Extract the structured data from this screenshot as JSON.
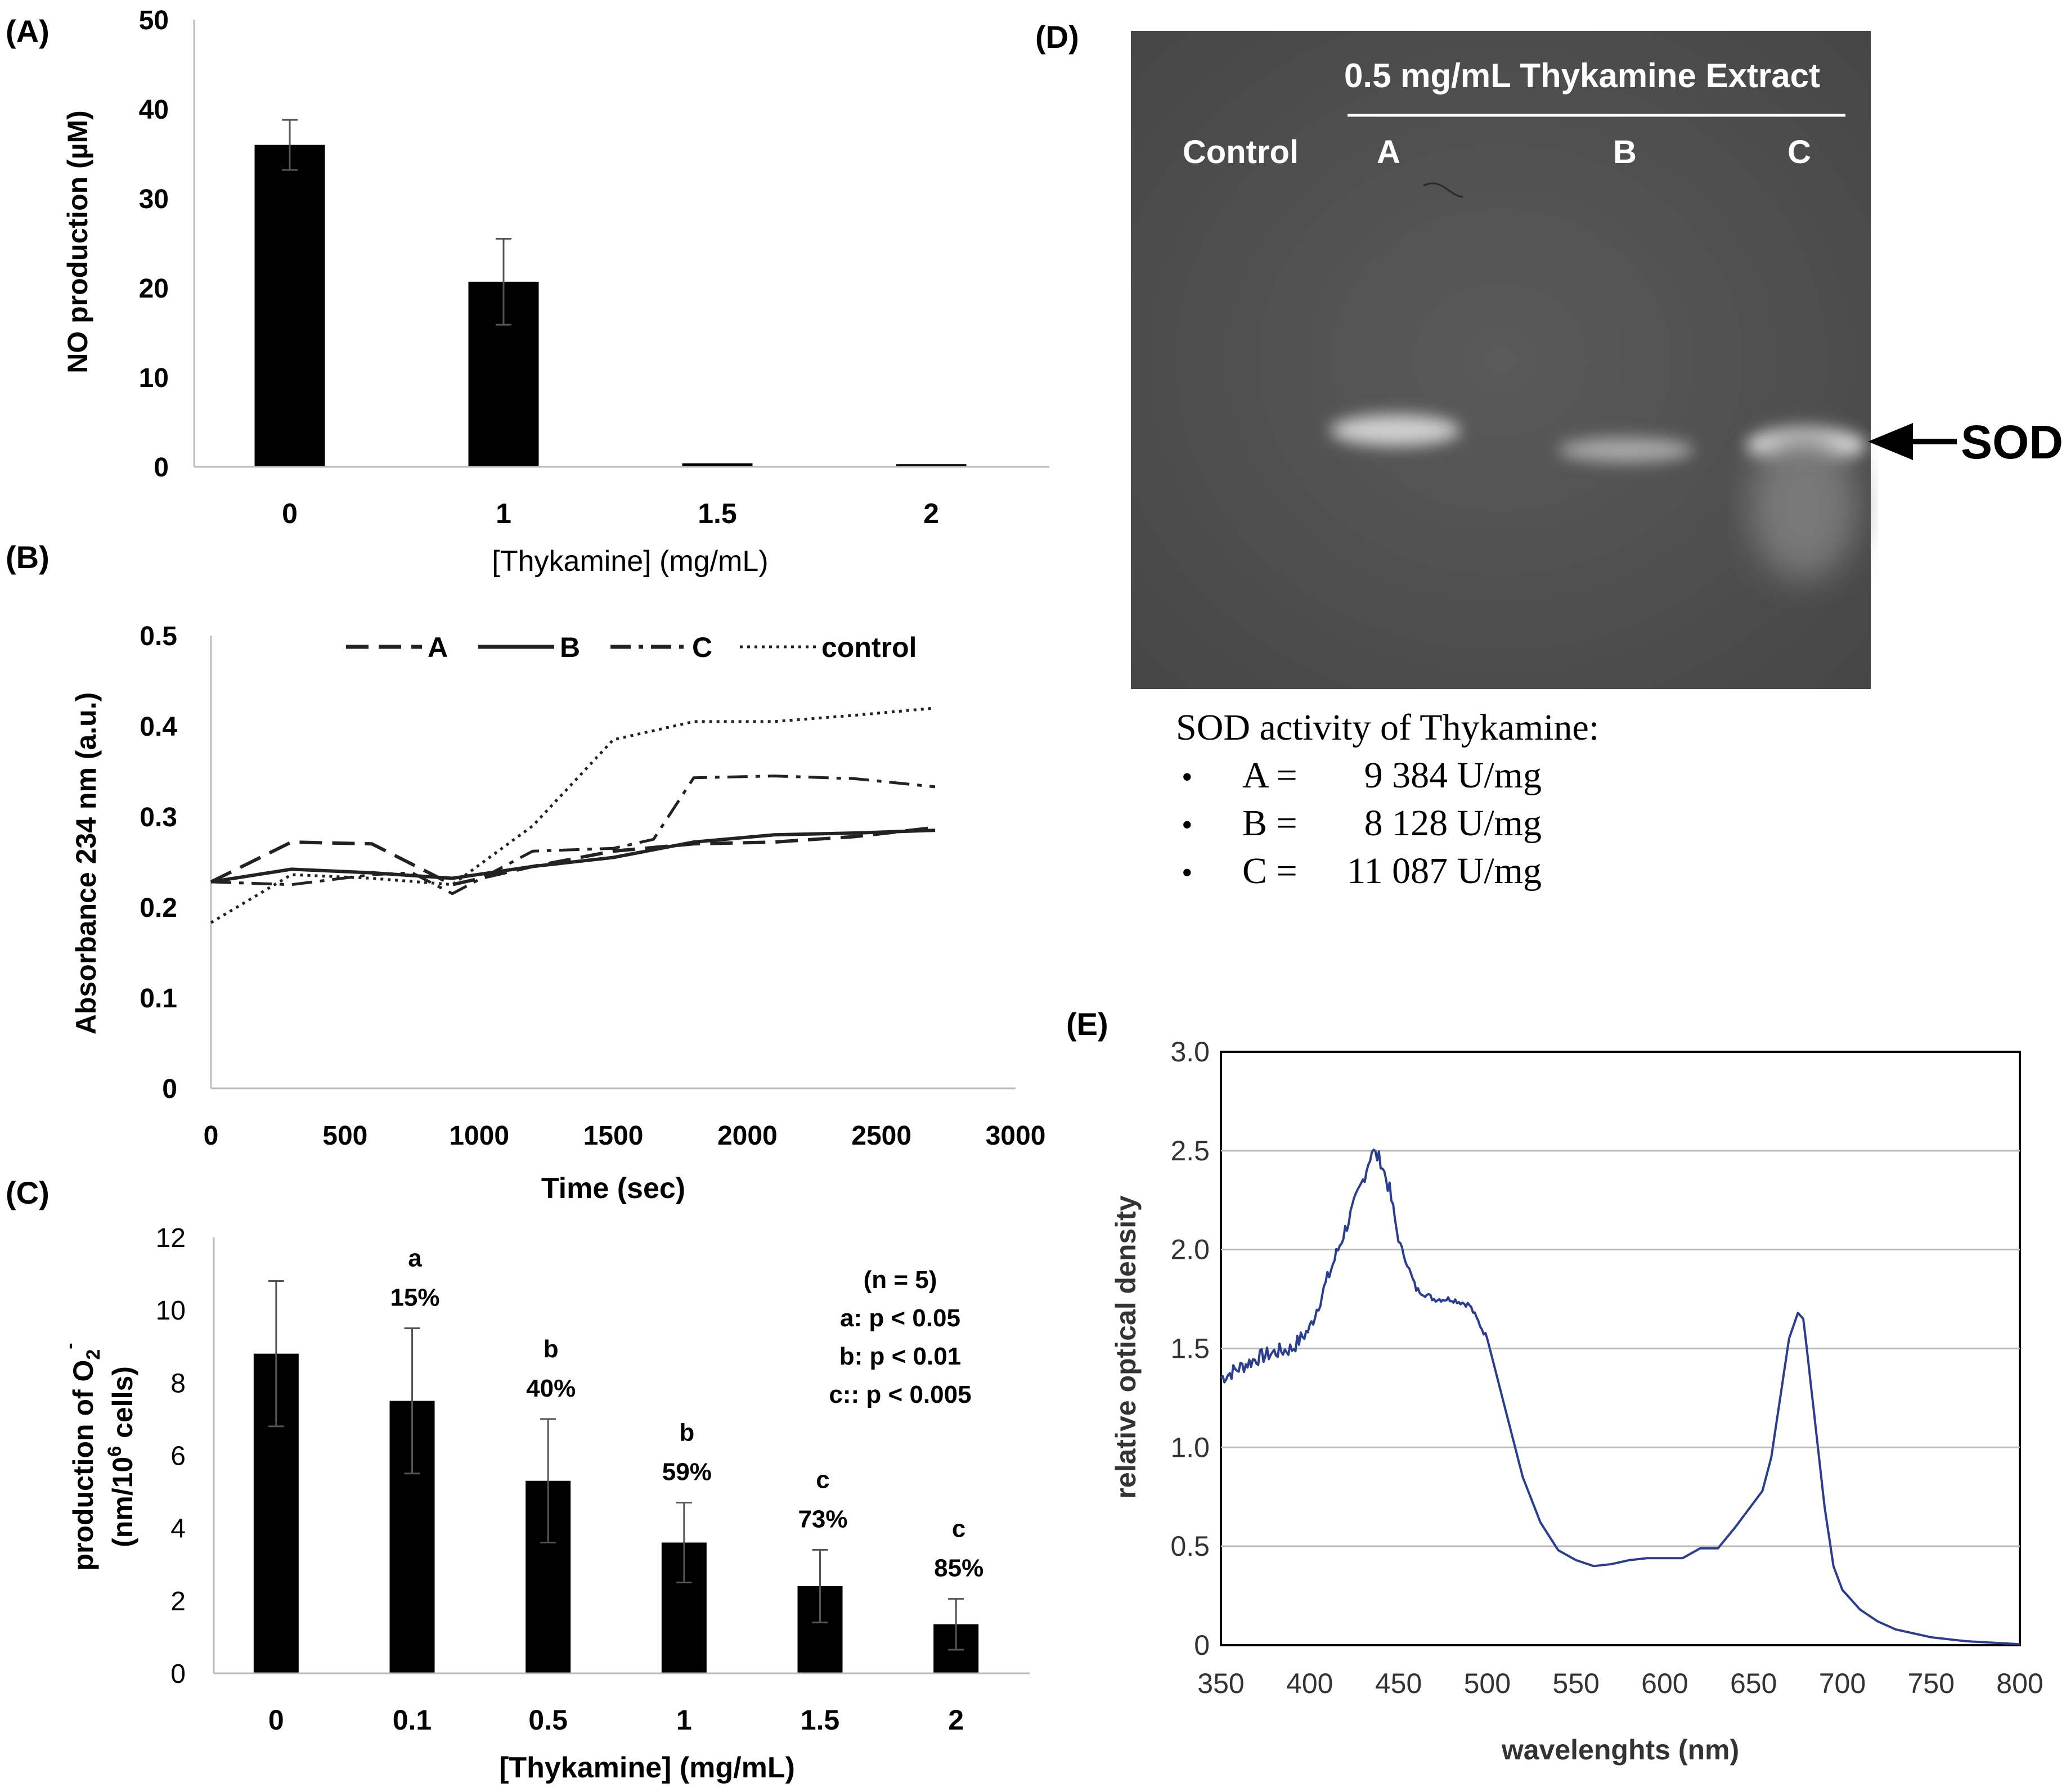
{
  "chart_data": [
    {
      "panel": "(A)",
      "type": "bar",
      "categories": [
        "0",
        "1",
        "1.5",
        "2"
      ],
      "values": [
        36,
        20.7,
        0.4,
        0.3
      ],
      "errors": [
        2.8,
        4.8,
        0,
        0
      ],
      "xlabel": "[Thykamine] (mg/mL)",
      "ylabel": "NO production (µM)",
      "ylim": [
        0,
        50
      ],
      "yticks": [
        "0",
        "10",
        "20",
        "30",
        "40",
        "50"
      ],
      "bar_color": "#000000"
    },
    {
      "panel": "(B)",
      "type": "line",
      "xlabel": "Time (sec)",
      "ylabel": "Absorbance 234 nm (a.u.)",
      "xlim": [
        0,
        3000
      ],
      "ylim": [
        0,
        0.5
      ],
      "xticks": [
        "0",
        "500",
        "1000",
        "1500",
        "2000",
        "2500",
        "3000"
      ],
      "yticks": [
        "0",
        "0.1",
        "0.2",
        "0.3",
        "0.4",
        "0.5"
      ],
      "legend_position": "top",
      "series": [
        {
          "name": "A",
          "dash": "dashed",
          "x": [
            0,
            300,
            600,
            900,
            1200,
            1500,
            1800,
            2100,
            2400,
            2700
          ],
          "y": [
            0.228,
            0.272,
            0.27,
            0.225,
            0.245,
            0.262,
            0.27,
            0.272,
            0.278,
            0.288
          ]
        },
        {
          "name": "B",
          "dash": "solid",
          "x": [
            0,
            300,
            600,
            900,
            1200,
            1500,
            1800,
            2100,
            2400,
            2700
          ],
          "y": [
            0.228,
            0.242,
            0.238,
            0.232,
            0.245,
            0.255,
            0.272,
            0.28,
            0.282,
            0.285
          ]
        },
        {
          "name": "C",
          "dash": "dashdot",
          "x": [
            0,
            300,
            600,
            750,
            900,
            1200,
            1500,
            1650,
            1800,
            2100,
            2400,
            2700
          ],
          "y": [
            0.228,
            0.225,
            0.236,
            0.238,
            0.215,
            0.262,
            0.265,
            0.275,
            0.343,
            0.345,
            0.342,
            0.333
          ]
        },
        {
          "name": "control",
          "dash": "dotted",
          "x": [
            0,
            300,
            600,
            900,
            1200,
            1500,
            1800,
            2100,
            2400,
            2700
          ],
          "y": [
            0.183,
            0.236,
            0.232,
            0.225,
            0.29,
            0.385,
            0.405,
            0.405,
            0.412,
            0.42
          ]
        }
      ]
    },
    {
      "panel": "(C)",
      "type": "bar",
      "categories": [
        "0",
        "0.1",
        "0.5",
        "1",
        "1.5",
        "2"
      ],
      "values": [
        8.8,
        7.5,
        5.3,
        3.6,
        2.4,
        1.35
      ],
      "errors": [
        2.0,
        2.0,
        1.7,
        1.1,
        1.0,
        0.7
      ],
      "sig": [
        "",
        "a",
        "b",
        "b",
        "c",
        "c"
      ],
      "pct": [
        "",
        "15%",
        "40%",
        "59%",
        "73%",
        "85%"
      ],
      "xlabel": "[Thykamine] (mg/mL)",
      "ylabel_line1": "production of O",
      "ylabel_sub": "2",
      "ylabel_sup": "-",
      "ylabel_line2": "(nm/10",
      "ylabel_line2_sup": "6",
      "ylabel_line2_end": " cells)",
      "ylim": [
        0,
        12
      ],
      "yticks": [
        "0",
        "2",
        "4",
        "6",
        "8",
        "10",
        "12"
      ],
      "notes": [
        "(n = 5)",
        "a: p < 0.05",
        "b: p < 0.01",
        "c:: p < 0.005"
      ]
    },
    {
      "panel": "(E)",
      "type": "line",
      "xlabel": "wavelenghts (nm)",
      "ylabel": "relative optical density",
      "xlim": [
        350,
        800
      ],
      "ylim": [
        0,
        3.0
      ],
      "xticks": [
        "350",
        "400",
        "450",
        "500",
        "550",
        "600",
        "650",
        "700",
        "750",
        "800"
      ],
      "yticks": [
        "0",
        "0.5",
        "1.0",
        "1.5",
        "2.0",
        "2.5",
        "3.0"
      ],
      "line_color": "#2a3d8f",
      "x": [
        350,
        360,
        370,
        380,
        390,
        400,
        410,
        420,
        430,
        435,
        440,
        445,
        450,
        460,
        470,
        480,
        490,
        500,
        510,
        520,
        530,
        540,
        550,
        560,
        570,
        580,
        590,
        600,
        610,
        620,
        630,
        640,
        650,
        655,
        660,
        665,
        670,
        675,
        678,
        680,
        685,
        690,
        695,
        700,
        710,
        720,
        730,
        740,
        750,
        760,
        770,
        780,
        790,
        800
      ],
      "y": [
        1.35,
        1.4,
        1.45,
        1.48,
        1.5,
        1.6,
        1.85,
        2.1,
        2.35,
        2.5,
        2.45,
        2.3,
        2.05,
        1.8,
        1.75,
        1.75,
        1.72,
        1.55,
        1.2,
        0.85,
        0.62,
        0.48,
        0.43,
        0.4,
        0.41,
        0.43,
        0.44,
        0.44,
        0.44,
        0.49,
        0.49,
        0.6,
        0.72,
        0.78,
        0.95,
        1.25,
        1.55,
        1.68,
        1.65,
        1.5,
        1.1,
        0.7,
        0.4,
        0.28,
        0.18,
        0.12,
        0.08,
        0.06,
        0.04,
        0.03,
        0.02,
        0.015,
        0.01,
        0.005
      ],
      "noise": true
    }
  ],
  "panel_d": {
    "label": "(D)",
    "header": "0.5 mg/mL Thykamine Extract",
    "lanes": [
      "Control",
      "A",
      "B",
      "C"
    ],
    "band_label": "SOD",
    "activity_title": "SOD activity of Thykamine:",
    "bullet": "•",
    "activities": [
      {
        "lane": "A =",
        "value": "9 384 U/mg"
      },
      {
        "lane": "B =",
        "value": "8 128 U/mg"
      },
      {
        "lane": "C =",
        "value": "11 087 U/mg"
      }
    ]
  },
  "legend_b": {
    "A": "A",
    "B": "B",
    "C": "C",
    "control": "control"
  }
}
